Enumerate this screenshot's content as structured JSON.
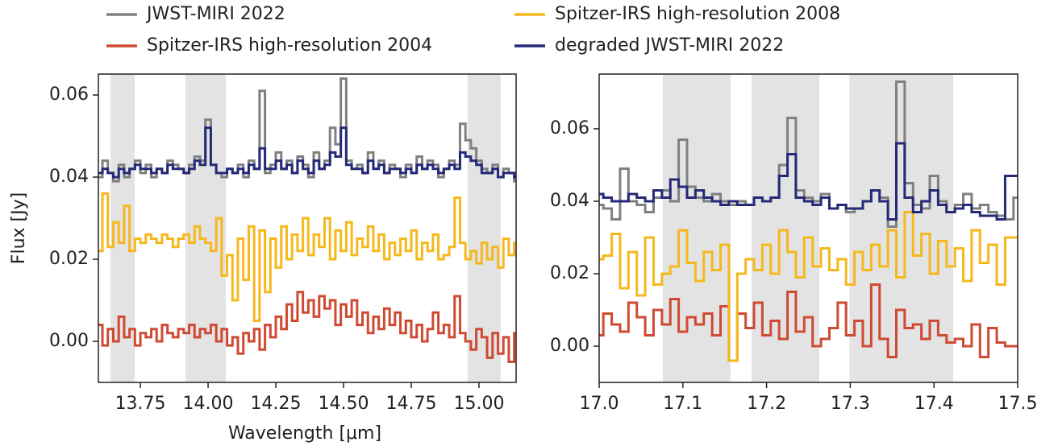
{
  "chart_data": [
    {
      "type": "step",
      "xlabel": "Wavelength [μm]",
      "ylabel": "Flux [Jy]",
      "xlim": [
        13.595,
        15.137
      ],
      "ylim": [
        -0.01,
        0.0651
      ],
      "xticks": [
        13.75,
        {
          "value": 14,
          "label": "14.00"
        },
        14.25,
        {
          "value": 14.5,
          "label": "14.50"
        },
        14.75,
        {
          "value": 15,
          "label": "15.00"
        }
      ],
      "yticks": [
        {
          "value": 0,
          "label": "0.00"
        },
        0.02,
        0.04,
        0.06
      ],
      "shaded_spans": [
        [
          13.64,
          13.729
        ],
        [
          13.916,
          14.065
        ],
        [
          14.958,
          15.08
        ]
      ],
      "span_color": "#e3e3e3",
      "x": [
        13.6,
        13.62,
        13.64,
        13.66,
        13.68,
        13.7,
        13.72,
        13.74,
        13.76,
        13.78,
        13.8,
        13.82,
        13.84,
        13.86,
        13.88,
        13.9,
        13.92,
        13.94,
        13.96,
        13.98,
        14,
        14.02,
        14.04,
        14.06,
        14.08,
        14.1,
        14.12,
        14.14,
        14.16,
        14.18,
        14.2,
        14.22,
        14.24,
        14.26,
        14.28,
        14.3,
        14.32,
        14.34,
        14.36,
        14.38,
        14.4,
        14.42,
        14.44,
        14.46,
        14.48,
        14.5,
        14.52,
        14.54,
        14.56,
        14.58,
        14.6,
        14.62,
        14.64,
        14.66,
        14.68,
        14.7,
        14.72,
        14.74,
        14.76,
        14.78,
        14.8,
        14.82,
        14.84,
        14.86,
        14.88,
        14.9,
        14.92,
        14.94,
        14.96,
        14.98,
        15,
        15.02,
        15.04,
        15.06,
        15.08,
        15.1,
        15.12,
        15.14
      ],
      "series": [
        {
          "name": "JWST-MIRI 2022",
          "color": "#808080",
          "values": [
            0.04,
            0.044,
            0.041,
            0.039,
            0.043,
            0.04,
            0.042,
            0.044,
            0.041,
            0.043,
            0.04,
            0.042,
            0.041,
            0.044,
            0.043,
            0.042,
            0.041,
            0.043,
            0.045,
            0.044,
            0.054,
            0.043,
            0.041,
            0.04,
            0.042,
            0.041,
            0.043,
            0.04,
            0.044,
            0.042,
            0.061,
            0.041,
            0.043,
            0.046,
            0.042,
            0.044,
            0.041,
            0.045,
            0.043,
            0.04,
            0.046,
            0.042,
            0.044,
            0.052,
            0.048,
            0.064,
            0.044,
            0.042,
            0.043,
            0.041,
            0.046,
            0.042,
            0.044,
            0.041,
            0.043,
            0.042,
            0.04,
            0.043,
            0.041,
            0.045,
            0.042,
            0.044,
            0.043,
            0.04,
            0.042,
            0.044,
            0.043,
            0.053,
            0.049,
            0.047,
            0.044,
            0.042,
            0.041,
            0.043,
            0.04,
            0.042,
            0.041,
            0.039
          ]
        },
        {
          "name": "Spitzer-IRS high-resolution 2004",
          "color": "#cf4a32",
          "values": [
            0.004,
            -0.001,
            0.003,
            0.0,
            0.006,
            0.001,
            0.003,
            -0.001,
            0.002,
            0.001,
            0.003,
            0.0,
            0.004,
            0.002,
            0.001,
            0.003,
            0.002,
            0.004,
            0.001,
            0.003,
            0.002,
            0.004,
            0.0,
            0.003,
            -0.001,
            0.001,
            -0.003,
            0.002,
            0.0,
            0.003,
            -0.002,
            0.004,
            0.001,
            0.006,
            0.003,
            0.009,
            0.005,
            0.012,
            0.007,
            0.01,
            0.006,
            0.011,
            0.008,
            0.01,
            0.004,
            0.009,
            0.006,
            0.01,
            0.004,
            0.007,
            0.002,
            0.006,
            0.003,
            0.008,
            0.004,
            0.007,
            0.002,
            0.005,
            0.001,
            0.004,
            0.0,
            0.003,
            0.007,
            0.002,
            0.004,
            0.001,
            0.011,
            0.002,
            0.0,
            -0.002,
            0.003,
            0.001,
            -0.004,
            0.002,
            -0.003,
            0.001,
            -0.005,
            0.002
          ]
        },
        {
          "name": "Spitzer-IRS high-resolution 2008",
          "color": "#f6b81c",
          "values": [
            0.022,
            0.036,
            0.023,
            0.029,
            0.024,
            0.033,
            0.022,
            0.025,
            0.024,
            0.026,
            0.025,
            0.024,
            0.026,
            0.025,
            0.023,
            0.025,
            0.026,
            0.024,
            0.028,
            0.025,
            0.024,
            0.022,
            0.03,
            0.016,
            0.021,
            0.01,
            0.025,
            0.015,
            0.028,
            0.005,
            0.027,
            0.012,
            0.025,
            0.018,
            0.028,
            0.02,
            0.026,
            0.022,
            0.03,
            0.021,
            0.026,
            0.023,
            0.03,
            0.02,
            0.027,
            0.022,
            0.029,
            0.021,
            0.025,
            0.023,
            0.028,
            0.022,
            0.026,
            0.02,
            0.024,
            0.021,
            0.025,
            0.022,
            0.027,
            0.02,
            0.024,
            0.022,
            0.026,
            0.02,
            0.021,
            0.023,
            0.035,
            0.024,
            0.02,
            0.022,
            0.019,
            0.024,
            0.02,
            0.023,
            0.018,
            0.025,
            0.021,
            0.024
          ]
        },
        {
          "name": "degraded JWST-MIRI 2022",
          "color": "#252a78",
          "values": [
            0.041,
            0.042,
            0.041,
            0.04,
            0.042,
            0.041,
            0.042,
            0.043,
            0.042,
            0.042,
            0.041,
            0.042,
            0.041,
            0.043,
            0.042,
            0.042,
            0.041,
            0.042,
            0.044,
            0.043,
            0.052,
            0.043,
            0.041,
            0.041,
            0.042,
            0.041,
            0.042,
            0.041,
            0.043,
            0.042,
            0.047,
            0.042,
            0.042,
            0.044,
            0.042,
            0.043,
            0.041,
            0.044,
            0.042,
            0.041,
            0.044,
            0.042,
            0.043,
            0.046,
            0.045,
            0.052,
            0.043,
            0.042,
            0.042,
            0.041,
            0.044,
            0.042,
            0.043,
            0.041,
            0.042,
            0.042,
            0.041,
            0.042,
            0.041,
            0.043,
            0.042,
            0.043,
            0.042,
            0.041,
            0.042,
            0.043,
            0.042,
            0.046,
            0.045,
            0.044,
            0.043,
            0.041,
            0.041,
            0.042,
            0.04,
            0.041,
            0.041,
            0.04
          ]
        }
      ]
    },
    {
      "type": "step",
      "xlim": [
        17.0,
        17.5
      ],
      "ylim": [
        -0.01,
        0.0751
      ],
      "xticks": [
        {
          "value": 17,
          "label": "17.0"
        },
        17.1,
        17.2,
        17.3,
        17.4,
        17.5
      ],
      "yticks": [
        {
          "value": 0,
          "label": "0.00"
        },
        0.02,
        0.04,
        0.06
      ],
      "shaded_spans": [
        [
          17.076,
          17.157
        ],
        [
          17.182,
          17.263
        ],
        [
          17.299,
          17.423
        ]
      ],
      "span_color": "#e3e3e3",
      "x": [
        17,
        17.01,
        17.02,
        17.03,
        17.04,
        17.05,
        17.06,
        17.07,
        17.08,
        17.09,
        17.1,
        17.11,
        17.12,
        17.13,
        17.14,
        17.15,
        17.16,
        17.17,
        17.18,
        17.19,
        17.2,
        17.21,
        17.22,
        17.23,
        17.24,
        17.25,
        17.26,
        17.27,
        17.28,
        17.29,
        17.3,
        17.31,
        17.32,
        17.33,
        17.34,
        17.35,
        17.36,
        17.37,
        17.38,
        17.39,
        17.4,
        17.41,
        17.42,
        17.43,
        17.44,
        17.45,
        17.46,
        17.47,
        17.48,
        17.49,
        17.5
      ],
      "series": [
        {
          "name": "JWST-MIRI 2022",
          "color": "#808080",
          "values": [
            0.039,
            0.038,
            0.035,
            0.049,
            0.04,
            0.039,
            0.037,
            0.041,
            0.043,
            0.04,
            0.057,
            0.044,
            0.041,
            0.04,
            0.042,
            0.04,
            0.039,
            0.04,
            0.039,
            0.041,
            0.04,
            0.041,
            0.05,
            0.063,
            0.043,
            0.041,
            0.04,
            0.042,
            0.038,
            0.039,
            0.037,
            0.038,
            0.04,
            0.043,
            0.041,
            0.033,
            0.073,
            0.045,
            0.039,
            0.038,
            0.047,
            0.04,
            0.037,
            0.039,
            0.042,
            0.038,
            0.039,
            0.037,
            0.036,
            0.035,
            0.041
          ]
        },
        {
          "name": "Spitzer-IRS high-resolution 2004",
          "color": "#cf4a32",
          "values": [
            0.003,
            0.009,
            0.006,
            0.004,
            0.012,
            0.008,
            0.003,
            0.01,
            0.006,
            0.013,
            0.004,
            0.008,
            0.006,
            0.009,
            0.003,
            0.011,
            -0.004,
            0.009,
            0.005,
            0.012,
            0.003,
            0.007,
            0.002,
            0.015,
            0.004,
            0.008,
            0.0,
            0.002,
            0.005,
            0.012,
            0.003,
            0.007,
            0.0,
            0.017,
            0.002,
            -0.003,
            0.01,
            0.005,
            0.006,
            0.002,
            0.007,
            0.003,
            0.001,
            0.002,
            0.0,
            0.006,
            -0.003,
            0.005,
            0.001,
            0.0,
            0.0
          ]
        },
        {
          "name": "Spitzer-IRS high-resolution 2008",
          "color": "#f6b81c",
          "values": [
            0.024,
            0.025,
            0.031,
            0.016,
            0.026,
            0.014,
            0.03,
            0.017,
            0.02,
            0.022,
            0.032,
            0.023,
            0.018,
            0.026,
            0.021,
            0.028,
            -0.004,
            0.02,
            0.024,
            0.021,
            0.028,
            0.02,
            0.032,
            0.026,
            0.019,
            0.03,
            0.022,
            0.027,
            0.021,
            0.024,
            0.017,
            0.026,
            0.021,
            0.028,
            0.022,
            0.032,
            0.019,
            0.037,
            0.025,
            0.031,
            0.02,
            0.029,
            0.022,
            0.027,
            0.018,
            0.032,
            0.023,
            0.028,
            0.017,
            0.03,
            0.03
          ]
        },
        {
          "name": "degraded JWST-MIRI 2022",
          "color": "#252a78",
          "values": [
            0.042,
            0.041,
            0.04,
            0.04,
            0.042,
            0.041,
            0.04,
            0.043,
            0.041,
            0.046,
            0.044,
            0.041,
            0.043,
            0.041,
            0.04,
            0.039,
            0.04,
            0.039,
            0.039,
            0.041,
            0.04,
            0.041,
            0.047,
            0.053,
            0.041,
            0.04,
            0.039,
            0.041,
            0.038,
            0.039,
            0.038,
            0.038,
            0.04,
            0.043,
            0.04,
            0.035,
            0.056,
            0.041,
            0.037,
            0.04,
            0.043,
            0.039,
            0.037,
            0.038,
            0.039,
            0.037,
            0.036,
            0.036,
            0.035,
            0.047,
            0.047
          ]
        }
      ]
    }
  ]
}
